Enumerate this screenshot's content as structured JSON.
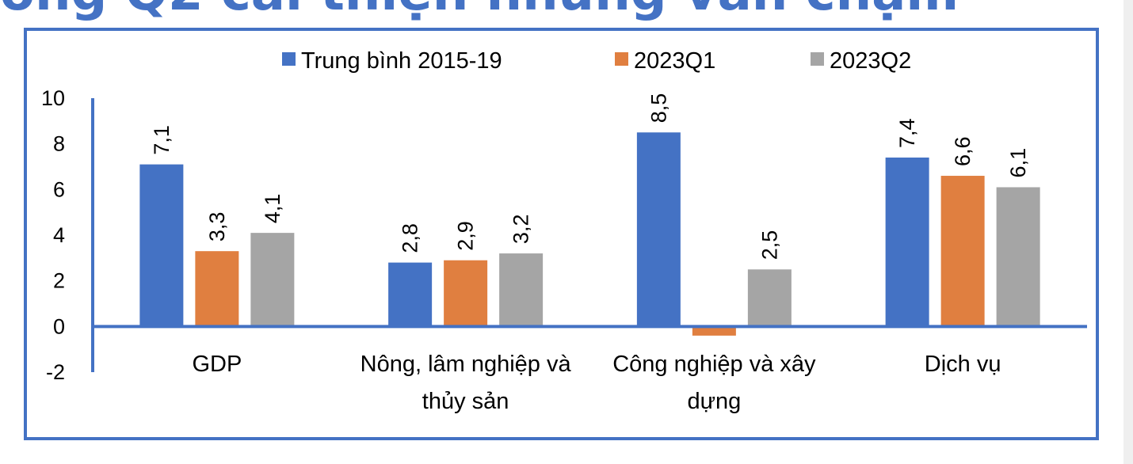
{
  "heading": {
    "text": "ong Q2 cải thiện nhưng vẫn chậm"
  },
  "chart_data": {
    "type": "bar",
    "categories": [
      "GDP",
      "Nông, lâm nghiệp và thủy sản",
      "Công nghiệp và xây dựng",
      "Dịch vụ"
    ],
    "category_lines": [
      [
        "GDP"
      ],
      [
        "Nông, lâm nghiệp và",
        "thủy sản"
      ],
      [
        "Công nghiệp và xây",
        "dựng"
      ],
      [
        "Dịch vụ"
      ]
    ],
    "series": [
      {
        "name": "Trung bình 2015-19",
        "color": "#4472c4",
        "values": [
          7.1,
          2.8,
          8.5,
          7.4
        ],
        "labels": [
          "7,1",
          "2,8",
          "8,5",
          "7,4"
        ]
      },
      {
        "name": "2023Q1",
        "color": "#e07f40",
        "values": [
          3.3,
          2.9,
          -0.4,
          6.6
        ],
        "labels": [
          "3,3",
          "2,9",
          "",
          "6,6"
        ]
      },
      {
        "name": "2023Q2",
        "color": "#a5a5a5",
        "values": [
          4.1,
          3.2,
          2.5,
          6.1
        ],
        "labels": [
          "4,1",
          "3,2",
          "2,5",
          "6,1"
        ]
      }
    ],
    "yticks": [
      "10",
      "8",
      "6",
      "4",
      "2",
      "0",
      "-2"
    ],
    "ylim": [
      -2,
      10
    ],
    "legend": "top",
    "grid": false,
    "title": "",
    "xlabel": "",
    "ylabel": "",
    "axis_color": "#4472c4"
  }
}
